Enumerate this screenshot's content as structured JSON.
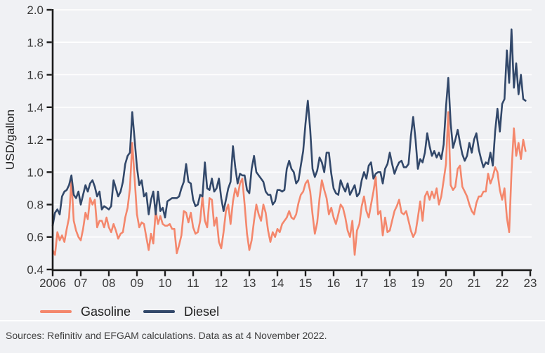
{
  "chart_data": {
    "type": "line",
    "ylabel": "USD/gallon",
    "ylim": [
      0.4,
      2.0
    ],
    "ytick_labels": [
      "0.4",
      "0.6",
      "0.8",
      "1.0",
      "1.2",
      "1.4",
      "1.6",
      "1.8",
      "2.0"
    ],
    "xtick_labels": [
      "2006",
      "07",
      "08",
      "09",
      "10",
      "11",
      "12",
      "13",
      "14",
      "15",
      "16",
      "17",
      "18",
      "19",
      "20",
      "21",
      "22",
      "23"
    ],
    "x_start": "2006-01",
    "x_end": "2022-11",
    "x_frequency": "monthly",
    "grid": "horizontal white gridlines",
    "legend_position": "bottom-left",
    "series": [
      {
        "name": "Gasoline",
        "color": "#f4876c",
        "values": [
          0.52,
          0.49,
          0.63,
          0.58,
          0.61,
          0.57,
          0.65,
          0.72,
          0.95,
          0.7,
          0.64,
          0.6,
          0.58,
          0.65,
          0.75,
          0.71,
          0.84,
          0.8,
          0.83,
          0.66,
          0.7,
          0.7,
          0.66,
          0.72,
          0.66,
          0.63,
          0.68,
          0.64,
          0.59,
          0.62,
          0.63,
          0.72,
          0.78,
          0.9,
          1.18,
          0.96,
          0.74,
          0.66,
          0.69,
          0.68,
          0.6,
          0.52,
          0.62,
          0.56,
          0.76,
          0.68,
          0.73,
          0.68,
          0.67,
          0.67,
          0.68,
          0.65,
          0.65,
          0.5,
          0.55,
          0.61,
          0.76,
          0.75,
          0.69,
          0.75,
          0.66,
          0.62,
          0.63,
          0.7,
          0.85,
          0.7,
          0.66,
          0.84,
          0.83,
          0.67,
          0.72,
          0.57,
          0.53,
          0.63,
          0.76,
          0.8,
          0.68,
          0.82,
          0.9,
          0.85,
          0.93,
          0.96,
          0.8,
          0.62,
          0.52,
          0.58,
          0.7,
          0.8,
          0.74,
          0.7,
          0.8,
          0.75,
          0.64,
          0.57,
          0.63,
          0.6,
          0.65,
          0.63,
          0.68,
          0.7,
          0.72,
          0.76,
          0.72,
          0.71,
          0.74,
          0.81,
          0.86,
          0.88,
          0.93,
          0.95,
          0.88,
          0.74,
          0.62,
          0.69,
          0.84,
          0.95,
          0.89,
          0.84,
          0.74,
          0.78,
          0.72,
          0.68,
          0.74,
          0.8,
          0.78,
          0.72,
          0.64,
          0.6,
          0.7,
          0.49,
          0.64,
          0.68,
          0.79,
          0.85,
          0.76,
          0.72,
          0.8,
          0.88,
          0.97,
          0.74,
          0.76,
          0.61,
          0.72,
          0.63,
          0.64,
          0.7,
          0.76,
          0.79,
          0.83,
          0.75,
          0.74,
          0.76,
          0.7,
          0.64,
          0.6,
          0.63,
          0.72,
          0.82,
          0.7,
          0.85,
          0.88,
          0.83,
          0.88,
          0.84,
          0.9,
          0.8,
          0.85,
          0.95,
          1.05,
          1.37,
          0.92,
          0.89,
          0.91,
          1.02,
          1.04,
          0.91,
          0.88,
          0.85,
          0.8,
          0.76,
          0.74,
          0.81,
          0.85,
          0.85,
          0.88,
          0.88,
          0.99,
          0.93,
          0.97,
          1.03,
          1.0,
          0.89,
          0.83,
          0.9,
          0.72,
          0.63,
          1.0,
          1.27,
          1.1,
          1.18,
          1.08,
          1.2,
          1.13
        ]
      },
      {
        "name": "Diesel",
        "color": "#32486a",
        "values": [
          0.67,
          0.75,
          0.77,
          0.74,
          0.85,
          0.88,
          0.89,
          0.92,
          0.98,
          0.86,
          0.84,
          0.88,
          0.8,
          0.86,
          0.92,
          0.88,
          0.93,
          0.95,
          0.91,
          0.85,
          0.88,
          0.77,
          0.79,
          0.78,
          0.77,
          0.79,
          0.95,
          0.9,
          0.85,
          0.88,
          0.94,
          1.05,
          1.1,
          1.12,
          1.37,
          1.2,
          1.03,
          0.92,
          0.95,
          0.85,
          0.87,
          0.74,
          0.83,
          0.88,
          0.74,
          0.88,
          0.76,
          0.78,
          0.72,
          0.82,
          0.83,
          0.84,
          0.84,
          0.84,
          0.85,
          0.9,
          0.94,
          1.05,
          0.94,
          0.93,
          0.83,
          0.79,
          0.8,
          0.86,
          0.85,
          1.06,
          0.9,
          0.89,
          0.96,
          0.88,
          0.9,
          0.96,
          0.84,
          0.76,
          0.83,
          0.9,
          0.94,
          1.16,
          1.03,
          0.93,
          0.99,
          0.98,
          0.98,
          0.89,
          0.87,
          1.02,
          1.1,
          1.0,
          0.98,
          0.96,
          0.94,
          0.88,
          0.86,
          0.86,
          0.8,
          0.82,
          0.89,
          0.89,
          0.88,
          0.89,
          1.02,
          1.07,
          1.02,
          1.0,
          0.93,
          0.95,
          1.04,
          1.13,
          1.3,
          1.44,
          1.26,
          1.02,
          0.97,
          1.01,
          1.09,
          1.06,
          1.0,
          1.12,
          1.12,
          0.99,
          0.9,
          0.87,
          0.86,
          0.95,
          0.91,
          0.88,
          0.93,
          0.86,
          0.89,
          0.92,
          0.85,
          0.87,
          0.95,
          1.0,
          0.96,
          1.04,
          1.06,
          0.96,
          0.99,
          1.0,
          1.0,
          0.93,
          1.02,
          1.05,
          1.12,
          1.05,
          0.99,
          1.03,
          1.06,
          1.07,
          1.03,
          1.03,
          1.05,
          1.22,
          1.34,
          1.2,
          1.02,
          1.08,
          1.06,
          1.12,
          1.24,
          1.16,
          1.1,
          1.13,
          1.09,
          1.12,
          1.08,
          1.17,
          1.4,
          1.58,
          1.3,
          1.15,
          1.2,
          1.26,
          1.18,
          1.11,
          1.07,
          1.1,
          1.18,
          1.12,
          1.2,
          1.24,
          1.14,
          1.08,
          1.03,
          1.06,
          1.05,
          1.12,
          1.04,
          1.25,
          1.39,
          1.25,
          1.42,
          1.45,
          1.75,
          1.55,
          1.88,
          1.52,
          1.67,
          1.48,
          1.6,
          1.45,
          1.44
        ]
      }
    ]
  },
  "footer": {
    "source": "Sources: Refinitiv and EFGAM calculations. Data as at 4 November 2022."
  },
  "colors": {
    "background": "#f0f1f4",
    "grid": "#ffffff",
    "axis": "#1b1b1b",
    "tick_label": "#3a3a3a",
    "axis_title": "#222222",
    "legend_text": "#1d1d1d",
    "source_text": "#3f3f3f",
    "gasoline": "#f4876c",
    "diesel": "#32486a"
  }
}
